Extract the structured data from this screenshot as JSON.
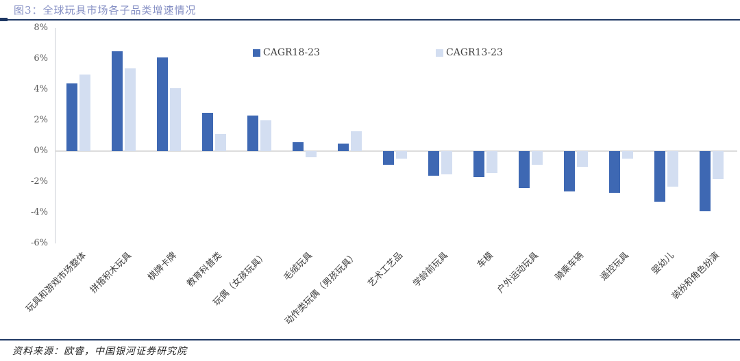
{
  "header": {
    "title": "图3：全球玩具市场各子品类增速情况"
  },
  "footer": {
    "source": "资料来源：欧睿，中国银河证券研究院"
  },
  "colors": {
    "title_text": "#858FC4",
    "separator_rule": "#1F3864",
    "series1": "#3E68B3",
    "series2": "#D3DEF1",
    "axis_text": "#595959",
    "label_text": "#404040",
    "gridline": "#DCDCDC"
  },
  "chart_data": {
    "type": "bar",
    "title": "图3：全球玩具市场各子品类增速情况",
    "categories": [
      "玩具和游戏市场整体",
      "拼搭积木玩具",
      "棋牌卡牌",
      "教育科普类",
      "玩偶（女孩玩具）",
      "毛绒玩具",
      "动作类玩偶（男孩玩具）",
      "艺术工艺品",
      "学龄前玩具",
      "车模",
      "户外运动玩具",
      "骑乘车辆",
      "遥控玩具",
      "婴幼儿",
      "装扮和角色扮演"
    ],
    "series": [
      {
        "name": "CAGR18-23",
        "color": "#3E68B3",
        "values": [
          4.4,
          6.5,
          6.1,
          2.5,
          2.3,
          0.6,
          0.5,
          -0.9,
          -1.6,
          -1.7,
          -2.4,
          -2.6,
          -2.7,
          -3.3,
          -3.9
        ]
      },
      {
        "name": "CAGR13-23",
        "color": "#D3DEF1",
        "values": [
          5.0,
          5.4,
          4.1,
          1.1,
          2.0,
          -0.4,
          1.3,
          -0.5,
          -1.5,
          -1.4,
          -0.9,
          -1.0,
          -0.5,
          -2.3,
          -1.8
        ]
      }
    ],
    "ylim": [
      -6,
      8
    ],
    "ytick_step": 2,
    "ytick_labels": [
      "8%",
      "6%",
      "4%",
      "2%",
      "0%",
      "-2%",
      "-4%",
      "-6%"
    ],
    "unit": "%",
    "grid": false,
    "legend_position": "top"
  }
}
